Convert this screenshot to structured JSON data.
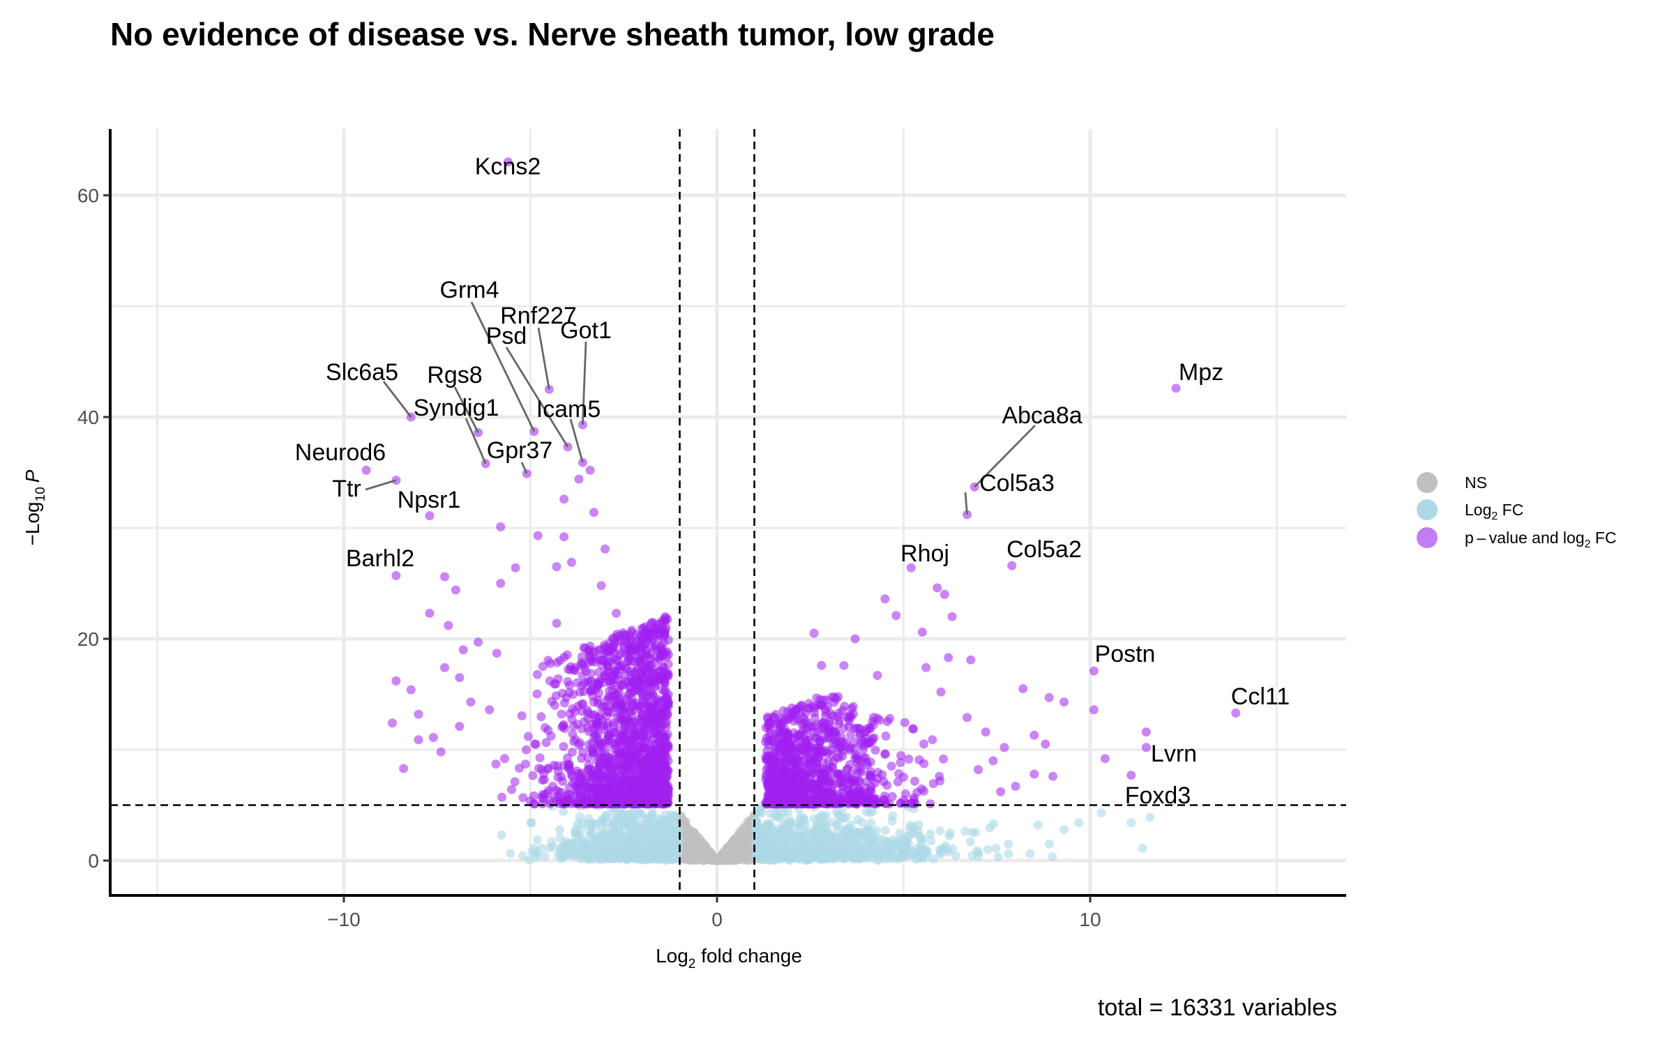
{
  "chart_data": {
    "type": "scatter",
    "title": "No evidence of disease vs. Nerve sheath tumor, low grade",
    "xlabel_base": "Log",
    "xlabel_sub": "2",
    "xlabel_rest": " fold change",
    "ylabel_prefix": "−Log",
    "ylabel_sub": "10",
    "ylabel_p": "P",
    "caption": "total = 16331 variables",
    "xlim": [
      -16.5,
      16.5
    ],
    "ylim": [
      -3.2,
      66
    ],
    "x_ticks": [
      -10,
      0,
      10
    ],
    "x_tick_labels": [
      "−10",
      "0",
      "10"
    ],
    "y_ticks": [
      0,
      20,
      40,
      60
    ],
    "y_tick_labels": [
      "0",
      "20",
      "40",
      "60"
    ],
    "fc_cutoff": 1,
    "p_cutoff": 5,
    "grid": true,
    "legend_position": "right",
    "legend": [
      {
        "label": "NS",
        "color": "#bfbfbf"
      },
      {
        "label_base": "Log",
        "label_sub": "2",
        "label_rest": " FC",
        "color": "#add8e6"
      },
      {
        "label_base": "p – value and log",
        "label_sub": "2",
        "label_rest": " FC",
        "color": "#a020f0"
      }
    ],
    "colors": {
      "ns": "#bfbfbf",
      "fc": "#add8e6",
      "both": "#a020f0"
    },
    "labeled_genes": [
      {
        "name": "Kcns2",
        "x": -5.6,
        "y": 63.0
      },
      {
        "name": "Grm4",
        "x": -4.9,
        "y": 38.7
      },
      {
        "name": "Rnf227",
        "x": -4.5,
        "y": 42.5
      },
      {
        "name": "Psd",
        "x": -4.0,
        "y": 37.3
      },
      {
        "name": "Got1",
        "x": -3.6,
        "y": 39.3
      },
      {
        "name": "Slc6a5",
        "x": -8.2,
        "y": 40.0
      },
      {
        "name": "Rgs8",
        "x": -6.4,
        "y": 38.6
      },
      {
        "name": "Syndig1",
        "x": -6.2,
        "y": 35.8
      },
      {
        "name": "Icam5",
        "x": -3.6,
        "y": 35.9
      },
      {
        "name": "Neurod6",
        "x": -9.4,
        "y": 35.2
      },
      {
        "name": "Gpr37",
        "x": -5.1,
        "y": 34.9
      },
      {
        "name": "Ttr",
        "x": -8.6,
        "y": 34.3
      },
      {
        "name": "Npsr1",
        "x": -7.7,
        "y": 31.1
      },
      {
        "name": "Barhl2",
        "x": -8.6,
        "y": 25.7
      },
      {
        "name": "Mpz",
        "x": 12.3,
        "y": 42.6
      },
      {
        "name": "Abca8a",
        "x": 6.9,
        "y": 33.7
      },
      {
        "name": "Col5a3",
        "x": 6.7,
        "y": 31.2
      },
      {
        "name": "Rhoj",
        "x": 5.2,
        "y": 26.4
      },
      {
        "name": "Col5a2",
        "x": 7.9,
        "y": 26.6
      },
      {
        "name": "Postn",
        "x": 10.1,
        "y": 17.1
      },
      {
        "name": "Ccl11",
        "x": 13.9,
        "y": 13.3
      },
      {
        "name": "Lvrn",
        "x": 11.5,
        "y": 11.6
      },
      {
        "name": "Foxd3",
        "x": 11.1,
        "y": 7.7
      }
    ]
  }
}
